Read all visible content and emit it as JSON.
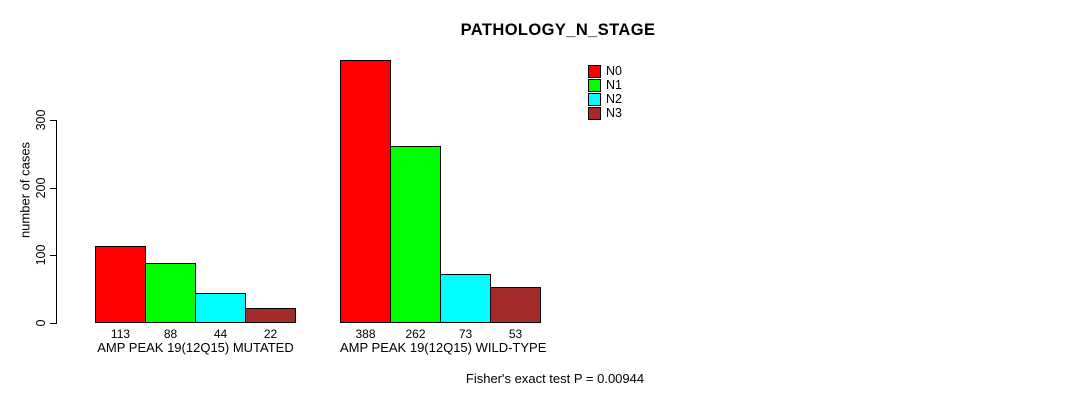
{
  "title": "PATHOLOGY_N_STAGE",
  "chart_data": {
    "type": "bar",
    "title": "PATHOLOGY_N_STAGE",
    "categories": [
      "AMP PEAK 19(12Q15) MUTATED",
      "AMP PEAK 19(12Q15) WILD-TYPE"
    ],
    "series": [
      {
        "name": "N0",
        "color": "#FF0000",
        "values": [
          113,
          388
        ]
      },
      {
        "name": "N1",
        "color": "#00FF00",
        "values": [
          88,
          262
        ]
      },
      {
        "name": "N2",
        "color": "#00FFFF",
        "values": [
          44,
          73
        ]
      },
      {
        "name": "N3",
        "color": "#A52A2A",
        "values": [
          22,
          53
        ]
      }
    ],
    "xlabel": "",
    "ylabel": "number of cases",
    "yticks": [
      0,
      100,
      200,
      300
    ],
    "ylim": [
      0,
      300
    ],
    "grid": false,
    "legend_position": "top-right",
    "annotation": "Fisher's exact test P = 0.00944"
  }
}
